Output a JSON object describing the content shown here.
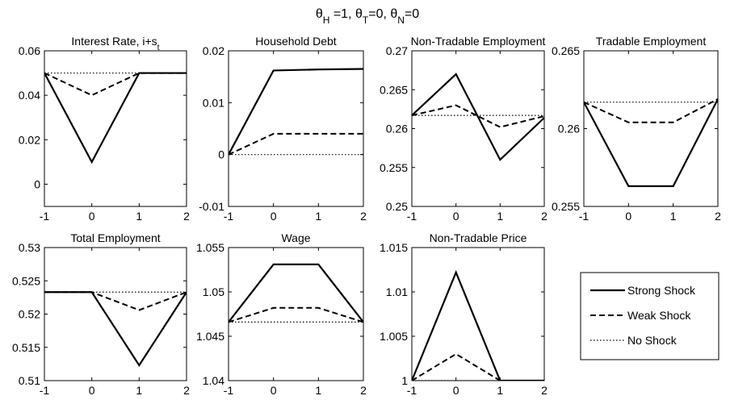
{
  "figure": {
    "suptitle_parts": [
      {
        "t": "θ"
      },
      {
        "t": "H",
        "sub": true
      },
      {
        "t": " =1,  "
      },
      {
        "t": "θ"
      },
      {
        "t": "T",
        "sub": true
      },
      {
        "t": "=0,  "
      },
      {
        "t": "θ"
      },
      {
        "t": "N",
        "sub": true
      },
      {
        "t": "=0"
      }
    ]
  },
  "legend": {
    "position": "bottom-right",
    "entries": [
      {
        "label": "Strong Shock",
        "style": "solid"
      },
      {
        "label": "Weak Shock",
        "style": "dashed"
      },
      {
        "label": "No Shock",
        "style": "dotted"
      }
    ]
  },
  "chart_data": [
    {
      "type": "line",
      "title_parts": [
        {
          "t": "Interest Rate, i+s"
        },
        {
          "t": "t",
          "sub": true
        }
      ],
      "x": [
        -1,
        0,
        1,
        2
      ],
      "xticks": [
        "-1",
        "0",
        "1",
        "2"
      ],
      "ylim": [
        -0.01,
        0.06
      ],
      "yticks": [
        0,
        0.02,
        0.04,
        0.06
      ],
      "yticklabels": [
        "0",
        "0.02",
        "0.04",
        "0.06"
      ],
      "series": [
        {
          "name": "Strong Shock",
          "style": "solid",
          "values": [
            0.05,
            0.01,
            0.05,
            0.05
          ]
        },
        {
          "name": "Weak Shock",
          "style": "dashed",
          "values": [
            0.05,
            0.04,
            0.05,
            0.05
          ]
        },
        {
          "name": "No Shock",
          "style": "dotted",
          "values": [
            0.05,
            0.05,
            0.05,
            0.05
          ]
        }
      ]
    },
    {
      "type": "line",
      "title_parts": [
        {
          "t": "Household Debt"
        }
      ],
      "x": [
        -1,
        0,
        1,
        2
      ],
      "xticks": [
        "-1",
        "0",
        "1",
        "2"
      ],
      "ylim": [
        -0.01,
        0.02
      ],
      "yticks": [
        -0.01,
        0,
        0.01,
        0.02
      ],
      "yticklabels": [
        "-0.01",
        "0",
        "0.01",
        "0.02"
      ],
      "series": [
        {
          "name": "Strong Shock",
          "style": "solid",
          "values": [
            0,
            0.0162,
            0.0164,
            0.0165
          ]
        },
        {
          "name": "Weak Shock",
          "style": "dashed",
          "values": [
            0,
            0.004,
            0.004,
            0.004
          ]
        },
        {
          "name": "No Shock",
          "style": "dotted",
          "values": [
            0,
            0,
            0,
            0
          ]
        }
      ]
    },
    {
      "type": "line",
      "title_parts": [
        {
          "t": "Non-Tradable Employment"
        }
      ],
      "x": [
        -1,
        0,
        1,
        2
      ],
      "xticks": [
        "-1",
        "0",
        "1",
        "2"
      ],
      "ylim": [
        0.25,
        0.27
      ],
      "yticks": [
        0.25,
        0.255,
        0.26,
        0.265,
        0.27
      ],
      "yticklabels": [
        "0.25",
        "0.255",
        "0.26",
        "0.265",
        "0.27"
      ],
      "series": [
        {
          "name": "Strong Shock",
          "style": "solid",
          "values": [
            0.2617,
            0.267,
            0.256,
            0.2614
          ]
        },
        {
          "name": "Weak Shock",
          "style": "dashed",
          "values": [
            0.2617,
            0.263,
            0.2602,
            0.2616
          ]
        },
        {
          "name": "No Shock",
          "style": "dotted",
          "values": [
            0.2617,
            0.2617,
            0.2617,
            0.2617
          ]
        }
      ]
    },
    {
      "type": "line",
      "title_parts": [
        {
          "t": "Tradable Employment"
        }
      ],
      "x": [
        -1,
        0,
        1,
        2
      ],
      "xticks": [
        "-1",
        "0",
        "1",
        "2"
      ],
      "ylim": [
        0.255,
        0.265
      ],
      "yticks": [
        0.255,
        0.26,
        0.265
      ],
      "yticklabels": [
        "0.255",
        "0.26",
        "0.265"
      ],
      "series": [
        {
          "name": "Strong Shock",
          "style": "solid",
          "values": [
            0.2617,
            0.2563,
            0.2563,
            0.2619
          ]
        },
        {
          "name": "Weak Shock",
          "style": "dashed",
          "values": [
            0.2617,
            0.2604,
            0.2604,
            0.2619
          ]
        },
        {
          "name": "No Shock",
          "style": "dotted",
          "values": [
            0.2617,
            0.2617,
            0.2617,
            0.2617
          ]
        }
      ]
    },
    {
      "type": "line",
      "title_parts": [
        {
          "t": "Total Employment"
        }
      ],
      "x": [
        -1,
        0,
        1,
        2
      ],
      "xticks": [
        "-1",
        "0",
        "1",
        "2"
      ],
      "ylim": [
        0.51,
        0.53
      ],
      "yticks": [
        0.51,
        0.515,
        0.52,
        0.525,
        0.53
      ],
      "yticklabels": [
        "0.51",
        "0.515",
        "0.52",
        "0.525",
        "0.53"
      ],
      "series": [
        {
          "name": "Strong Shock",
          "style": "solid",
          "values": [
            0.5233,
            0.5233,
            0.5123,
            0.5233
          ]
        },
        {
          "name": "Weak Shock",
          "style": "dashed",
          "values": [
            0.5233,
            0.5233,
            0.5206,
            0.5233
          ]
        },
        {
          "name": "No Shock",
          "style": "dotted",
          "values": [
            0.5233,
            0.5233,
            0.5233,
            0.5233
          ]
        }
      ]
    },
    {
      "type": "line",
      "title_parts": [
        {
          "t": "Wage"
        }
      ],
      "x": [
        -1,
        0,
        1,
        2
      ],
      "xticks": [
        "-1",
        "0",
        "1",
        "2"
      ],
      "ylim": [
        1.04,
        1.055
      ],
      "yticks": [
        1.04,
        1.045,
        1.05,
        1.055
      ],
      "yticklabels": [
        "1.04",
        "1.045",
        "1.05",
        "1.055"
      ],
      "series": [
        {
          "name": "Strong Shock",
          "style": "solid",
          "values": [
            1.0466,
            1.0531,
            1.0531,
            1.0466
          ]
        },
        {
          "name": "Weak Shock",
          "style": "dashed",
          "values": [
            1.0466,
            1.0482,
            1.0482,
            1.0466
          ]
        },
        {
          "name": "No Shock",
          "style": "dotted",
          "values": [
            1.0466,
            1.0466,
            1.0466,
            1.0466
          ]
        }
      ]
    },
    {
      "type": "line",
      "title_parts": [
        {
          "t": "Non-Tradable Price"
        }
      ],
      "x": [
        -1,
        0,
        1,
        2
      ],
      "xticks": [
        "-1",
        "0",
        "1",
        "2"
      ],
      "ylim": [
        1.0,
        1.015
      ],
      "yticks": [
        1.0,
        1.005,
        1.01,
        1.015
      ],
      "yticklabels": [
        "1",
        "1.005",
        "1.01",
        "1.015"
      ],
      "series": [
        {
          "name": "Strong Shock",
          "style": "solid",
          "values": [
            1.0,
            1.0122,
            1.0,
            1.0
          ]
        },
        {
          "name": "Weak Shock",
          "style": "dashed",
          "values": [
            1.0,
            1.003,
            1.0,
            1.0
          ]
        },
        {
          "name": "No Shock",
          "style": "dotted",
          "values": [
            1.0,
            1.0,
            1.0,
            1.0
          ]
        }
      ]
    }
  ]
}
